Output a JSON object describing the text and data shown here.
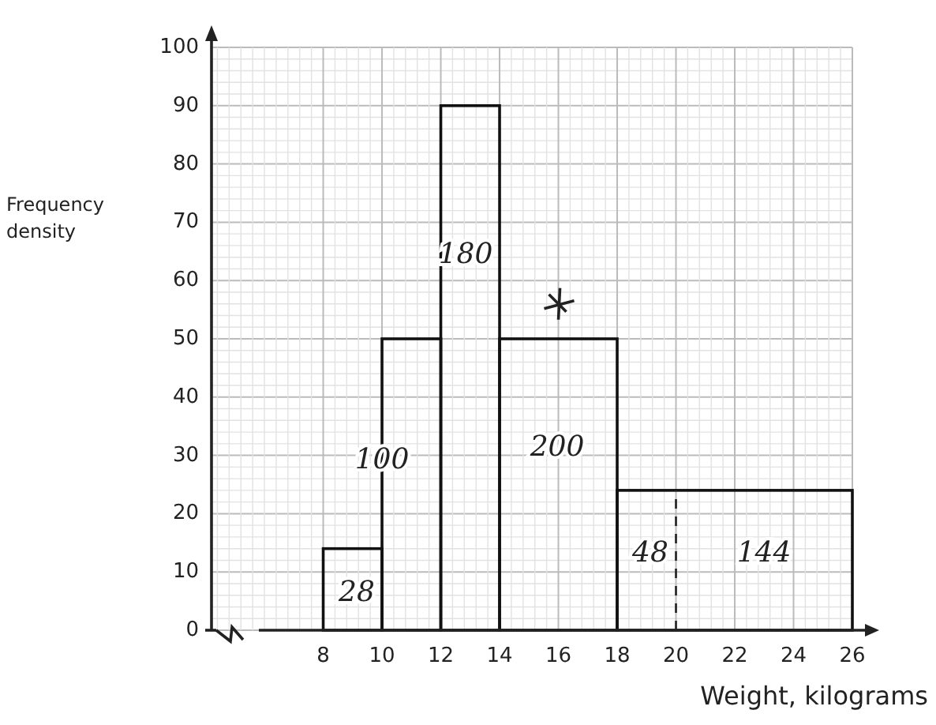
{
  "chart_data": {
    "type": "histogram",
    "xlabel": "Weight, kilograms",
    "ylabel": "Frequency density",
    "bins": [
      8,
      10,
      12,
      14,
      18,
      26
    ],
    "values": [
      14,
      50,
      90,
      50,
      24
    ],
    "color": "#111111",
    "xlim": [
      4.2,
      26
    ],
    "xticks": [
      8,
      10,
      12,
      14,
      16,
      18,
      20,
      22,
      24,
      26
    ],
    "ylim": [
      0,
      100
    ],
    "yticks": [
      0,
      10,
      20,
      30,
      40,
      50,
      60,
      70,
      80,
      90,
      100
    ],
    "grid": true,
    "ref_lines": [
      {
        "axis": "x",
        "value": 20,
        "line_style": "dashed"
      }
    ],
    "annotations": [
      "28",
      "100",
      "180",
      "200",
      "48",
      "144"
    ]
  }
}
